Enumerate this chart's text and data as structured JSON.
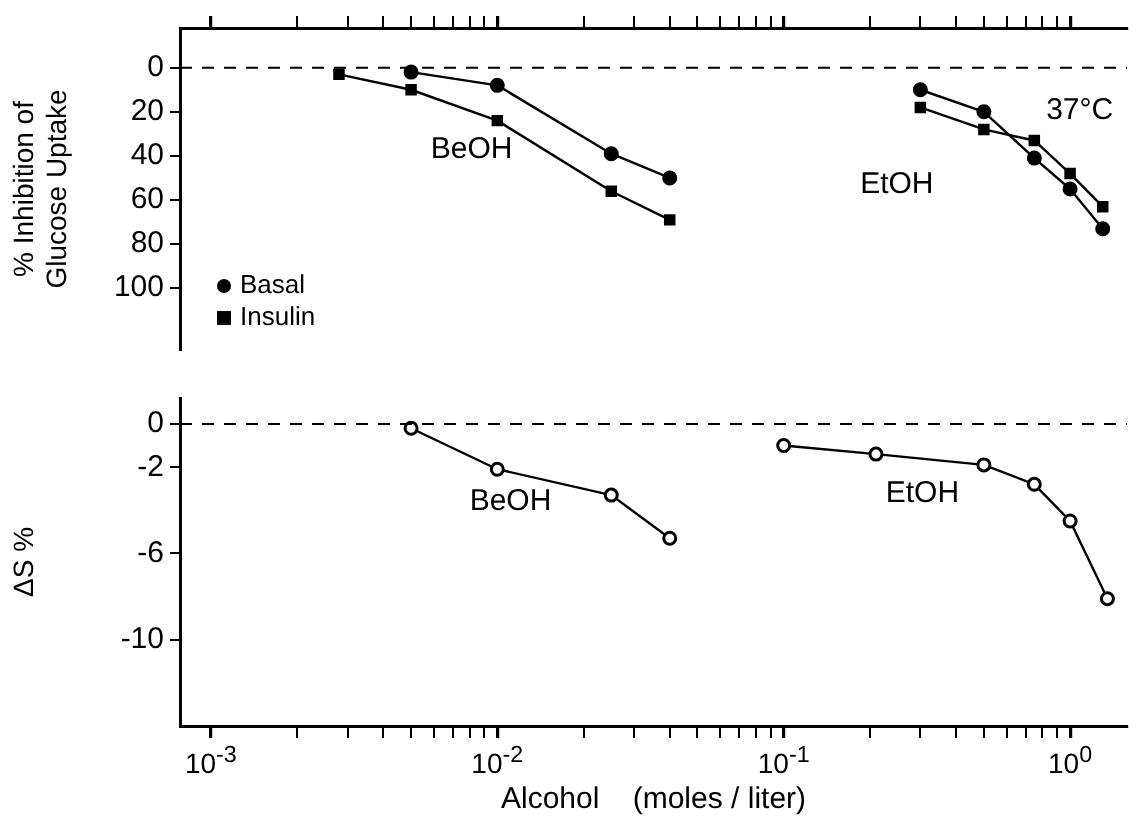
{
  "chart_data": [
    {
      "type": "line",
      "ylabel": "% Inhibition of Glucose Uptake",
      "log": "x",
      "xlim": [
        0.00078,
        1.58
      ],
      "ylim": [
        128,
        -18
      ],
      "tick_labels": "y",
      "grid": false,
      "legend": "bottom left",
      "xticks": [
        {
          "value": 0.001,
          "label": null
        },
        {
          "value": 0.002,
          "label": null
        },
        {
          "value": 0.003,
          "label": null
        },
        {
          "value": 0.004,
          "label": null
        },
        {
          "value": 0.005,
          "label": null
        },
        {
          "value": 0.006,
          "label": null
        },
        {
          "value": 0.007,
          "label": null
        },
        {
          "value": 0.008,
          "label": null
        },
        {
          "value": 0.009,
          "label": null
        },
        {
          "value": 0.01,
          "label": null
        },
        {
          "value": 0.02,
          "label": null
        },
        {
          "value": 0.03,
          "label": null
        },
        {
          "value": 0.04,
          "label": null
        },
        {
          "value": 0.05,
          "label": null
        },
        {
          "value": 0.06,
          "label": null
        },
        {
          "value": 0.07,
          "label": null
        },
        {
          "value": 0.08,
          "label": null
        },
        {
          "value": 0.09,
          "label": null
        },
        {
          "value": 0.1,
          "label": null
        },
        {
          "value": 0.2,
          "label": null
        },
        {
          "value": 0.3,
          "label": null
        },
        {
          "value": 0.4,
          "label": null
        },
        {
          "value": 0.5,
          "label": null
        },
        {
          "value": 0.6,
          "label": null
        },
        {
          "value": 0.7,
          "label": null
        },
        {
          "value": 0.8,
          "label": null
        },
        {
          "value": 0.9,
          "label": null
        },
        {
          "value": 1,
          "label": null
        }
      ],
      "yticks": [
        0,
        20,
        40,
        60,
        80,
        100
      ],
      "ref_lines": [
        {
          "axis": "y",
          "value": 0,
          "line_style": "dashed"
        }
      ],
      "annotations": [
        "BeOH",
        "EtOH",
        "37°C"
      ],
      "series": [
        {
          "name": "Basal",
          "color": "#000000",
          "marker": "circle",
          "x": [
            0.005,
            0.01,
            0.025,
            0.04
          ],
          "values": [
            2,
            8,
            39,
            50
          ]
        },
        {
          "name": "Insulin",
          "color": "#000000",
          "marker": "square",
          "x": [
            0.0028,
            0.005,
            0.01,
            0.025,
            0.04
          ],
          "values": [
            3,
            10,
            24,
            56,
            69
          ]
        },
        {
          "color": "#000000",
          "marker": "circle",
          "x": [
            0.3,
            0.5,
            0.75,
            1.0,
            1.3
          ],
          "values": [
            10,
            20,
            41,
            55,
            73
          ]
        },
        {
          "color": "#000000",
          "marker": "square",
          "x": [
            0.3,
            0.5,
            0.75,
            1.0,
            1.3
          ],
          "values": [
            18,
            28,
            33,
            48,
            63
          ]
        }
      ]
    },
    {
      "type": "line",
      "xlabel": "Alcohol    (moles / liter)",
      "ylabel": "ΔS %",
      "log": "x",
      "xlim": [
        0.00078,
        1.58
      ],
      "ylim": [
        -14,
        1.2
      ],
      "grid": false,
      "xticks": [
        {
          "value": 0.001,
          "label": "10$^{-3}$"
        },
        {
          "value": 0.002,
          "label": null
        },
        {
          "value": 0.003,
          "label": null
        },
        {
          "value": 0.004,
          "label": null
        },
        {
          "value": 0.005,
          "label": null
        },
        {
          "value": 0.006,
          "label": null
        },
        {
          "value": 0.007,
          "label": null
        },
        {
          "value": 0.008,
          "label": null
        },
        {
          "value": 0.009,
          "label": null
        },
        {
          "value": 0.01,
          "label": "10$^{-2}$"
        },
        {
          "value": 0.02,
          "label": null
        },
        {
          "value": 0.03,
          "label": null
        },
        {
          "value": 0.04,
          "label": null
        },
        {
          "value": 0.05,
          "label": null
        },
        {
          "value": 0.06,
          "label": null
        },
        {
          "value": 0.07,
          "label": null
        },
        {
          "value": 0.08,
          "label": null
        },
        {
          "value": 0.09,
          "label": null
        },
        {
          "value": 0.1,
          "label": "10$^{-1}$"
        },
        {
          "value": 0.2,
          "label": null
        },
        {
          "value": 0.3,
          "label": null
        },
        {
          "value": 0.4,
          "label": null
        },
        {
          "value": 0.5,
          "label": null
        },
        {
          "value": 0.6,
          "label": null
        },
        {
          "value": 0.7,
          "label": null
        },
        {
          "value": 0.8,
          "label": null
        },
        {
          "value": 0.9,
          "label": null
        },
        {
          "value": 1,
          "label": "10$^{0}$"
        }
      ],
      "yticks": [
        0,
        -2,
        -6,
        -10
      ],
      "ref_lines": [
        {
          "axis": "y",
          "value": 0,
          "line_style": "dashed"
        }
      ],
      "annotations": [
        "BeOH",
        "EtOH"
      ],
      "series": [
        {
          "color": "#000000",
          "marker": "circle",
          "x": [
            0.005,
            0.01,
            0.025,
            0.04
          ],
          "values": [
            -0.2,
            -2.1,
            -3.3,
            -5.3
          ]
        },
        {
          "color": "#000000",
          "marker": "circle",
          "x": [
            0.1,
            0.21,
            0.5,
            0.75,
            1.0,
            1.35
          ],
          "values": [
            -1.0,
            -1.4,
            -1.9,
            -2.8,
            -4.5,
            -8.1
          ]
        }
      ]
    }
  ]
}
